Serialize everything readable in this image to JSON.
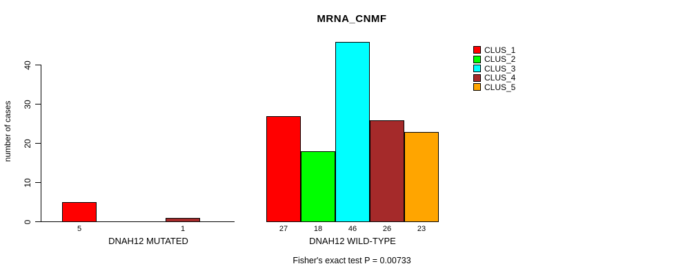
{
  "title": "MRNA_CNMF",
  "y_axis": {
    "label": "number of cases"
  },
  "footer": "Fisher's exact test P = 0.00733",
  "legend": {
    "position": "right-outside",
    "items": [
      {
        "label": "CLUS_1",
        "color": "#FF0000"
      },
      {
        "label": "CLUS_2",
        "color": "#00FF00"
      },
      {
        "label": "CLUS_3",
        "color": "#00FFFF"
      },
      {
        "label": "CLUS_4",
        "color": "#A52A2A"
      },
      {
        "label": "CLUS_5",
        "color": "#FFA500"
      }
    ]
  },
  "chart_data": {
    "type": "bar",
    "title": "MRNA_CNMF",
    "xlabel": "",
    "ylabel": "number of cases",
    "yticks": [
      0,
      10,
      20,
      30,
      40
    ],
    "ylim": [
      0,
      46
    ],
    "grid": false,
    "legend_position": "right-outside",
    "series_names": [
      "CLUS_1",
      "CLUS_2",
      "CLUS_3",
      "CLUS_4",
      "CLUS_5"
    ],
    "series_colors": [
      "#FF0000",
      "#00FF00",
      "#00FFFF",
      "#A52A2A",
      "#FFA500"
    ],
    "groups": [
      {
        "label": "DNAH12 MUTATED",
        "values": [
          5,
          0,
          0,
          1,
          0
        ]
      },
      {
        "label": "DNAH12 WILD-TYPE",
        "values": [
          27,
          18,
          46,
          26,
          23
        ]
      }
    ],
    "value_labels_note": "bar totals printed under each non-zero bar",
    "annotation": "Fisher's exact test P = 0.00733"
  }
}
